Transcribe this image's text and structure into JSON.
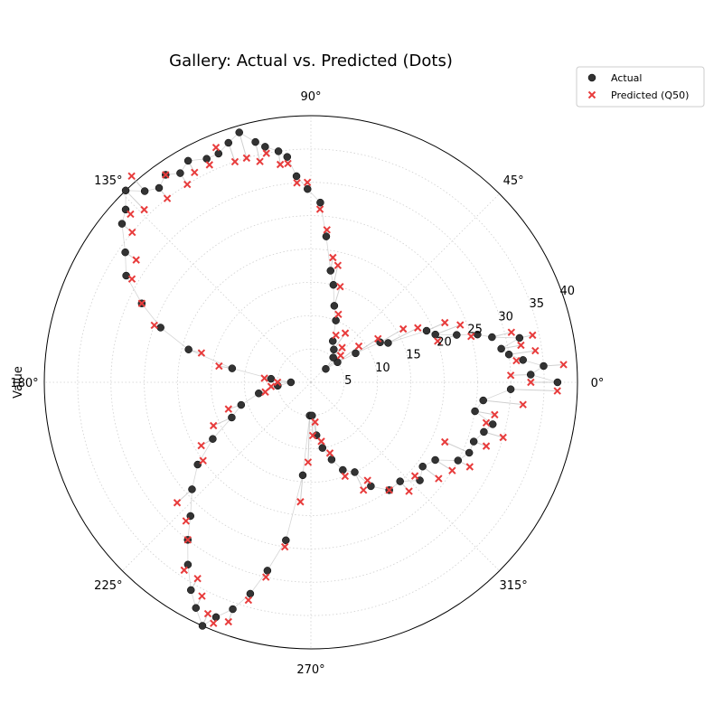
{
  "chart_data": {
    "type": "scatter",
    "projection": "polar",
    "title": "Gallery: Actual vs. Predicted (Dots)",
    "ylabel": "Value",
    "rlim": [
      0,
      40
    ],
    "r_ticks": [
      "5",
      "10",
      "15",
      "20",
      "25",
      "30",
      "35",
      "40"
    ],
    "theta_ticks": [
      "0°",
      "45°",
      "90°",
      "135°",
      "180°",
      "225°",
      "270°",
      "315°"
    ],
    "grid": true,
    "legend_position": "top-right",
    "connector_lines": true,
    "colors": {
      "actual": "#333333",
      "predicted": "#e83c3c",
      "grid": "#cfcfcf",
      "connector": "#bbbbbb"
    },
    "series": [
      {
        "name": "Actual",
        "marker": "circle",
        "points": [
          [
            0,
            37
          ],
          [
            2,
            33
          ],
          [
            4,
            35
          ],
          [
            6,
            32
          ],
          [
            8,
            30
          ],
          [
            10,
            29
          ],
          [
            12,
            32
          ],
          [
            14,
            28
          ],
          [
            16,
            26
          ],
          [
            18,
            23
          ],
          [
            21,
            20
          ],
          [
            24,
            19
          ],
          [
            27,
            13
          ],
          [
            30,
            12
          ],
          [
            33,
            8
          ],
          [
            37,
            5
          ],
          [
            42,
            3
          ],
          [
            48,
            5
          ],
          [
            55,
            6
          ],
          [
            62,
            7
          ],
          [
            68,
            10
          ],
          [
            73,
            12
          ],
          [
            77,
            15
          ],
          [
            80,
            17
          ],
          [
            84,
            22
          ],
          [
            87,
            27
          ],
          [
            91,
            29
          ],
          [
            94,
            31
          ],
          [
            96,
            34
          ],
          [
            98,
            35
          ],
          [
            101,
            36
          ],
          [
            103,
            37
          ],
          [
            106,
            39
          ],
          [
            109,
            38
          ],
          [
            112,
            37
          ],
          [
            115,
            37
          ],
          [
            119,
            38
          ],
          [
            122,
            37
          ],
          [
            125,
            38
          ],
          [
            128,
            37
          ],
          [
            131,
            38
          ],
          [
            134,
            40
          ],
          [
            137,
            38
          ],
          [
            140,
            37
          ],
          [
            145,
            34
          ],
          [
            150,
            32
          ],
          [
            155,
            28
          ],
          [
            160,
            24
          ],
          [
            165,
            19
          ],
          [
            170,
            12
          ],
          [
            175,
            6
          ],
          [
            180,
            3
          ],
          [
            186,
            5
          ],
          [
            192,
            8
          ],
          [
            198,
            11
          ],
          [
            204,
            13
          ],
          [
            210,
            17
          ],
          [
            216,
            21
          ],
          [
            222,
            24
          ],
          [
            228,
            27
          ],
          [
            232,
            30
          ],
          [
            236,
            33
          ],
          [
            240,
            36
          ],
          [
            243,
            38
          ],
          [
            246,
            40
          ],
          [
            248,
            38
          ],
          [
            251,
            36
          ],
          [
            254,
            33
          ],
          [
            257,
            29
          ],
          [
            261,
            24
          ],
          [
            265,
            14
          ],
          [
            268,
            5
          ],
          [
            272,
            5
          ],
          [
            276,
            8
          ],
          [
            280,
            10
          ],
          [
            285,
            12
          ],
          [
            290,
            14
          ],
          [
            296,
            15
          ],
          [
            300,
            18
          ],
          [
            306,
            20
          ],
          [
            312,
            20
          ],
          [
            318,
            22
          ],
          [
            323,
            21
          ],
          [
            328,
            22
          ],
          [
            332,
            25
          ],
          [
            336,
            26
          ],
          [
            340,
            26
          ],
          [
            344,
            27
          ],
          [
            347,
            28
          ],
          [
            350,
            25
          ],
          [
            354,
            26
          ],
          [
            358,
            30
          ]
        ]
      },
      {
        "name": "Predicted (Q50)",
        "marker": "x",
        "points": [
          [
            0,
            33
          ],
          [
            2,
            30
          ],
          [
            4,
            38
          ],
          [
            6,
            31
          ],
          [
            8,
            34
          ],
          [
            10,
            32
          ],
          [
            12,
            34
          ],
          [
            14,
            31
          ],
          [
            16,
            25
          ],
          [
            18,
            20
          ],
          [
            21,
            24
          ],
          [
            24,
            22
          ],
          [
            27,
            18
          ],
          [
            30,
            16
          ],
          [
            33,
            12
          ],
          [
            37,
            9
          ],
          [
            42,
            6
          ],
          [
            48,
            7
          ],
          [
            55,
            9
          ],
          [
            62,
            8
          ],
          [
            68,
            11
          ],
          [
            73,
            15
          ],
          [
            77,
            18
          ],
          [
            80,
            19
          ],
          [
            84,
            23
          ],
          [
            87,
            26
          ],
          [
            91,
            30
          ],
          [
            94,
            30
          ],
          [
            96,
            33
          ],
          [
            98,
            33
          ],
          [
            101,
            35
          ],
          [
            103,
            34
          ],
          [
            106,
            35
          ],
          [
            109,
            35
          ],
          [
            112,
            38
          ],
          [
            115,
            36
          ],
          [
            119,
            36
          ],
          [
            122,
            35
          ],
          [
            125,
            38
          ],
          [
            128,
            35
          ],
          [
            131,
            41
          ],
          [
            134,
            36
          ],
          [
            137,
            37
          ],
          [
            140,
            35
          ],
          [
            145,
            32
          ],
          [
            150,
            31
          ],
          [
            155,
            28
          ],
          [
            160,
            25
          ],
          [
            165,
            17
          ],
          [
            170,
            14
          ],
          [
            175,
            7
          ],
          [
            180,
            5
          ],
          [
            186,
            6
          ],
          [
            192,
            7
          ],
          [
            198,
            13
          ],
          [
            204,
            16
          ],
          [
            210,
            19
          ],
          [
            216,
            20
          ],
          [
            222,
            27
          ],
          [
            228,
            28
          ],
          [
            232,
            30
          ],
          [
            236,
            34
          ],
          [
            240,
            34
          ],
          [
            243,
            36
          ],
          [
            246,
            38
          ],
          [
            248,
            39
          ],
          [
            251,
            38
          ],
          [
            254,
            34
          ],
          [
            257,
            30
          ],
          [
            261,
            25
          ],
          [
            265,
            18
          ],
          [
            268,
            12
          ],
          [
            272,
            8
          ],
          [
            276,
            6
          ],
          [
            280,
            9
          ],
          [
            285,
            11
          ],
          [
            290,
            15
          ],
          [
            296,
            18
          ],
          [
            300,
            17
          ],
          [
            306,
            20
          ],
          [
            312,
            22
          ],
          [
            318,
            21
          ],
          [
            323,
            24
          ],
          [
            328,
            25
          ],
          [
            332,
            27
          ],
          [
            336,
            22
          ],
          [
            340,
            28
          ],
          [
            344,
            30
          ],
          [
            347,
            27
          ],
          [
            350,
            28
          ],
          [
            354,
            32
          ],
          [
            358,
            37
          ]
        ]
      }
    ]
  }
}
